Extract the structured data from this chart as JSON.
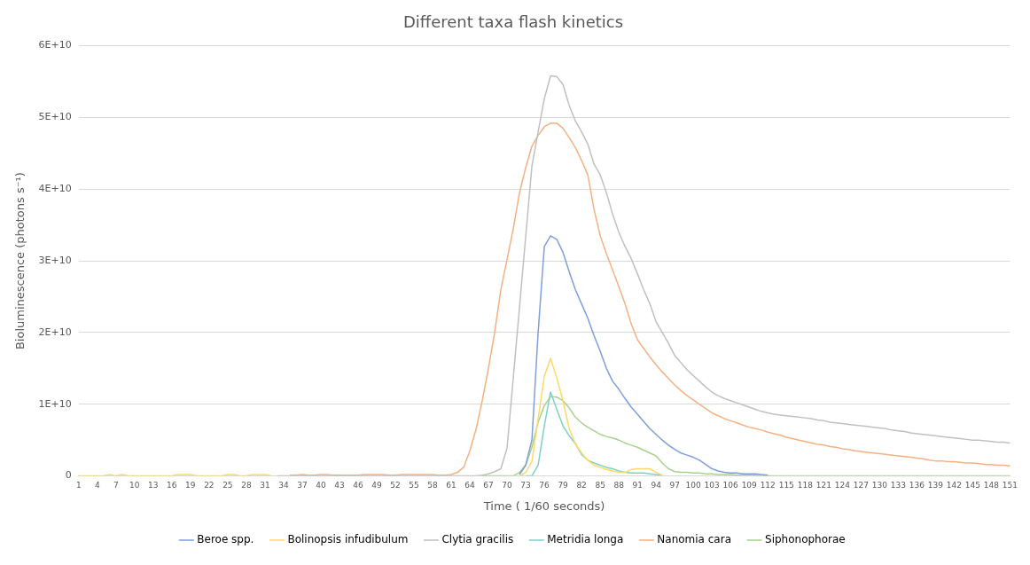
{
  "chart_data": {
    "type": "line",
    "title": "Different taxa flash kinetics",
    "xlabel": "Time ( 1/60 seconds)",
    "ylabel": "Bioluminescence (photons s⁻¹)",
    "categories": [
      "1",
      null,
      null,
      "4",
      null,
      null,
      "7",
      null,
      null,
      "10",
      null,
      null,
      "13",
      null,
      null,
      "16",
      null,
      null,
      "19",
      null,
      null,
      "22",
      null,
      null,
      "25",
      null,
      null,
      "28",
      null,
      null,
      "31",
      null,
      null,
      "34",
      null,
      null,
      "37",
      null,
      null,
      "40",
      null,
      null,
      "43",
      null,
      null,
      "46",
      null,
      null,
      "49",
      null,
      null,
      "52",
      null,
      null,
      "55",
      null,
      null,
      "58",
      null,
      null,
      "61",
      null,
      null,
      "64",
      null,
      null,
      "67",
      null,
      null,
      "70",
      null,
      null,
      "73",
      null,
      null,
      "76",
      null,
      null,
      "79",
      null,
      null,
      "82",
      null,
      null,
      "85",
      null,
      null,
      "88",
      null,
      null,
      "91",
      null,
      null,
      "94",
      null,
      null,
      "97",
      null,
      null,
      "100",
      null,
      null,
      "103",
      null,
      null,
      "106",
      null,
      null,
      "109",
      null,
      null,
      "112",
      null,
      null,
      "115",
      null,
      null,
      "118",
      null,
      null,
      "121",
      null,
      null,
      "124",
      null,
      null,
      "127",
      null,
      null,
      "130",
      null,
      null,
      "133",
      null,
      null,
      "136",
      null,
      null,
      "139",
      null,
      null,
      "142",
      null,
      null,
      "145",
      null,
      null,
      "148",
      null,
      null,
      "151"
    ],
    "ylim": [
      0,
      60000000000.0
    ],
    "yticks": [
      0,
      {
        "value": 10000000000.0,
        "label": "1E+10"
      },
      {
        "value": 20000000000.0,
        "label": "2E+10"
      },
      {
        "value": 30000000000.0,
        "label": "3E+10"
      },
      {
        "value": 40000000000.0,
        "label": "4E+10"
      },
      {
        "value": 50000000000.0,
        "label": "5E+10"
      },
      {
        "value": 60000000000.0,
        "label": "6E+10"
      }
    ],
    "grid": "y",
    "legend": "bottom",
    "marker": "none",
    "line_style": "solid",
    "series": [
      {
        "name": "Beroe spp.",
        "color": "#7f9fdb",
        "values": [
          null,
          null,
          null,
          null,
          null,
          null,
          null,
          null,
          null,
          null,
          null,
          null,
          null,
          null,
          null,
          null,
          null,
          null,
          null,
          null,
          null,
          null,
          null,
          null,
          null,
          null,
          null,
          null,
          null,
          null,
          null,
          null,
          null,
          null,
          null,
          null,
          null,
          null,
          null,
          null,
          null,
          null,
          null,
          null,
          null,
          null,
          null,
          null,
          null,
          null,
          null,
          null,
          null,
          null,
          null,
          null,
          null,
          null,
          null,
          null,
          null,
          null,
          null,
          null,
          null,
          null,
          null,
          null,
          null,
          null,
          null,
          200000000.0,
          1500000000.0,
          5000000000.0,
          20000000000.0,
          32000000000.0,
          33500000000.0,
          33000000000.0,
          31200000000.0,
          28500000000.0,
          26000000000.0,
          24000000000.0,
          22000000000.0,
          19600000000.0,
          17400000000.0,
          15000000000.0,
          13200000000.0,
          12100000000.0,
          10800000000.0,
          9600000000.0,
          8600000000.0,
          7600000000.0,
          6600000000.0,
          5800000000.0,
          5000000000.0,
          4300000000.0,
          3700000000.0,
          3200000000.0,
          2900000000.0,
          2600000000.0,
          2200000000.0,
          1600000000.0,
          1000000000.0,
          700000000.0,
          500000000.0,
          400000000.0,
          400000000.0,
          300000000.0,
          300000000.0,
          300000000.0,
          200000000.0,
          100000000.0,
          null,
          null,
          null,
          null,
          null,
          null,
          null,
          null,
          null,
          null,
          null,
          null,
          null,
          null,
          null,
          null,
          null,
          null,
          null,
          null,
          null,
          null,
          null,
          null,
          null,
          null,
          null,
          null,
          null,
          null,
          null,
          null,
          null,
          null,
          null,
          null,
          null,
          null,
          null
        ]
      },
      {
        "name": "Bolinopsis infudibulum",
        "color": "#ffd966",
        "values": [
          0,
          0,
          0,
          0,
          0,
          200000000.0,
          0,
          200000000.0,
          0,
          0,
          0,
          0,
          0,
          0,
          0,
          0,
          200000000.0,
          200000000.0,
          200000000.0,
          0,
          0,
          0,
          0,
          0,
          200000000.0,
          200000000.0,
          0,
          0,
          200000000.0,
          200000000.0,
          200000000.0,
          0,
          null,
          null,
          null,
          null,
          null,
          null,
          null,
          null,
          null,
          null,
          null,
          null,
          null,
          null,
          null,
          null,
          null,
          null,
          null,
          null,
          null,
          null,
          null,
          null,
          null,
          null,
          null,
          null,
          null,
          null,
          null,
          null,
          null,
          null,
          null,
          null,
          null,
          null,
          null,
          0,
          500000000.0,
          2000000000.0,
          8000000000.0,
          13900000000.0,
          16400000000.0,
          13700000000.0,
          10500000000.0,
          6600000000.0,
          4500000000.0,
          3200000000.0,
          2200000000.0,
          1500000000.0,
          1200000000.0,
          900000000.0,
          700000000.0,
          500000000.0,
          500000000.0,
          900000000.0,
          1000000000.0,
          1000000000.0,
          1000000000.0,
          500000000.0,
          100000000.0,
          null,
          null,
          null,
          null,
          null,
          null,
          null,
          null,
          null,
          null,
          null,
          null,
          null,
          null,
          null,
          null,
          null,
          null,
          null,
          null,
          null,
          null,
          null,
          null,
          null,
          null,
          null,
          null,
          null,
          null,
          null,
          null,
          null,
          null,
          null,
          null,
          null,
          null,
          null,
          null,
          null,
          null,
          null,
          null,
          null,
          null,
          null,
          null,
          null,
          null,
          null,
          null,
          null,
          null,
          null,
          null
        ]
      },
      {
        "name": "Clytia gracilis",
        "color": "#c0c0c0",
        "values": [
          null,
          null,
          null,
          null,
          null,
          null,
          null,
          null,
          null,
          null,
          null,
          null,
          null,
          null,
          null,
          null,
          null,
          null,
          null,
          null,
          null,
          null,
          null,
          null,
          null,
          null,
          null,
          null,
          null,
          null,
          null,
          null,
          0,
          0,
          0,
          0,
          0,
          0,
          0,
          0,
          0,
          0,
          0,
          0,
          0,
          0,
          0,
          0,
          0,
          0,
          0,
          0,
          0,
          0,
          0,
          0,
          0,
          0,
          0,
          0,
          0,
          0,
          0,
          0,
          0,
          100000000.0,
          300000000.0,
          600000000.0,
          1000000000.0,
          3900000000.0,
          13700000000.0,
          23500000000.0,
          33400000000.0,
          43200000000.0,
          48000000000.0,
          52600000000.0,
          55800000000.0,
          55700000000.0,
          54600000000.0,
          51700000000.0,
          49500000000.0,
          48000000000.0,
          46300000000.0,
          43500000000.0,
          42000000000.0,
          39500000000.0,
          36500000000.0,
          34000000000.0,
          32000000000.0,
          30300000000.0,
          28200000000.0,
          26000000000.0,
          24000000000.0,
          21500000000.0,
          20000000000.0,
          18500000000.0,
          16800000000.0,
          15800000000.0,
          14800000000.0,
          14000000000.0,
          13200000000.0,
          12400000000.0,
          11700000000.0,
          11200000000.0,
          10800000000.0,
          10500000000.0,
          10200000000.0,
          9900000000.0,
          9600000000.0,
          9300000000.0,
          9000000000.0,
          8800000000.0,
          8600000000.0,
          8500000000.0,
          8400000000.0,
          8300000000.0,
          8200000000.0,
          8100000000.0,
          8000000000.0,
          7800000000.0,
          7700000000.0,
          7500000000.0,
          7400000000.0,
          7300000000.0,
          7200000000.0,
          7100000000.0,
          7000000000.0,
          6900000000.0,
          6800000000.0,
          6700000000.0,
          6600000000.0,
          6400000000.0,
          6300000000.0,
          6200000000.0,
          6000000000.0,
          5900000000.0,
          5800000000.0,
          5700000000.0,
          5600000000.0,
          5500000000.0,
          5400000000.0,
          5300000000.0,
          5200000000.0,
          5100000000.0,
          5000000000.0,
          5000000000.0,
          4900000000.0,
          4800000000.0,
          4700000000.0,
          4700000000.0,
          4600000000.0
        ]
      },
      {
        "name": "Metridia longa",
        "color": "#80d0c8",
        "values": [
          null,
          null,
          null,
          null,
          null,
          null,
          null,
          null,
          null,
          null,
          null,
          null,
          null,
          null,
          null,
          null,
          null,
          null,
          null,
          null,
          null,
          null,
          null,
          null,
          null,
          null,
          null,
          null,
          null,
          null,
          null,
          null,
          null,
          null,
          null,
          null,
          null,
          null,
          null,
          null,
          null,
          null,
          null,
          null,
          null,
          null,
          null,
          null,
          null,
          null,
          null,
          null,
          null,
          null,
          null,
          null,
          null,
          null,
          null,
          null,
          null,
          null,
          null,
          null,
          null,
          null,
          null,
          null,
          null,
          null,
          null,
          null,
          0,
          0,
          1500000000.0,
          7000000000.0,
          11700000000.0,
          9300000000.0,
          7000000000.0,
          5600000000.0,
          4500000000.0,
          3000000000.0,
          2200000000.0,
          1800000000.0,
          1500000000.0,
          1200000000.0,
          1000000000.0,
          700000000.0,
          500000000.0,
          400000000.0,
          400000000.0,
          400000000.0,
          300000000.0,
          200000000.0,
          100000000.0,
          null,
          null,
          null,
          null,
          null,
          null,
          null,
          null,
          null,
          null,
          null,
          null,
          null,
          null,
          null,
          null,
          null,
          null,
          null,
          null,
          null,
          null,
          null,
          null,
          null,
          null,
          null,
          null,
          null,
          null,
          null,
          null,
          null,
          null,
          null,
          null,
          null,
          null,
          null,
          null,
          null,
          null,
          null,
          null,
          null,
          null,
          null,
          null,
          null,
          null,
          null,
          null,
          null,
          null,
          null,
          null
        ]
      },
      {
        "name": "Nanomia cara",
        "color": "#f4b183",
        "values": [
          null,
          null,
          null,
          null,
          null,
          null,
          null,
          null,
          null,
          null,
          null,
          null,
          null,
          null,
          null,
          null,
          null,
          null,
          null,
          null,
          null,
          null,
          null,
          null,
          null,
          null,
          null,
          null,
          null,
          null,
          null,
          null,
          null,
          null,
          100000000.0,
          100000000.0,
          200000000.0,
          100000000.0,
          100000000.0,
          200000000.0,
          200000000.0,
          100000000.0,
          100000000.0,
          100000000.0,
          100000000.0,
          100000000.0,
          200000000.0,
          200000000.0,
          200000000.0,
          200000000.0,
          100000000.0,
          100000000.0,
          200000000.0,
          200000000.0,
          200000000.0,
          200000000.0,
          200000000.0,
          200000000.0,
          100000000.0,
          100000000.0,
          200000000.0,
          500000000.0,
          1200000000.0,
          3500000000.0,
          6500000000.0,
          10500000000.0,
          15000000000.0,
          20000000000.0,
          26000000000.0,
          30200000000.0,
          34500000000.0,
          39500000000.0,
          43000000000.0,
          46000000000.0,
          47500000000.0,
          48700000000.0,
          49200000000.0,
          49200000000.0,
          48500000000.0,
          47200000000.0,
          45800000000.0,
          44000000000.0,
          42000000000.0,
          37200000000.0,
          33500000000.0,
          31000000000.0,
          28700000000.0,
          26400000000.0,
          24000000000.0,
          21200000000.0,
          19000000000.0,
          17800000000.0,
          16600000000.0,
          15500000000.0,
          14500000000.0,
          13600000000.0,
          12700000000.0,
          11900000000.0,
          11200000000.0,
          10600000000.0,
          10000000000.0,
          9400000000.0,
          8800000000.0,
          8400000000.0,
          8000000000.0,
          7700000000.0,
          7400000000.0,
          7100000000.0,
          6800000000.0,
          6600000000.0,
          6400000000.0,
          6100000000.0,
          5900000000.0,
          5700000000.0,
          5400000000.0,
          5200000000.0,
          5000000000.0,
          4800000000.0,
          4600000000.0,
          4400000000.0,
          4300000000.0,
          4100000000.0,
          4000000000.0,
          3800000000.0,
          3700000000.0,
          3500000000.0,
          3400000000.0,
          3300000000.0,
          3200000000.0,
          3100000000.0,
          3000000000.0,
          2900000000.0,
          2800000000.0,
          2700000000.0,
          2600000000.0,
          2500000000.0,
          2400000000.0,
          2200000000.0,
          2100000000.0,
          2100000000.0,
          2000000000.0,
          2000000000.0,
          1900000000.0,
          1800000000.0,
          1800000000.0,
          1700000000.0,
          1600000000.0,
          1600000000.0,
          1500000000.0,
          1500000000.0,
          1400000000.0
        ]
      },
      {
        "name": "Siphonophorae",
        "color": "#a9d18e",
        "values": [
          null,
          null,
          null,
          null,
          null,
          null,
          null,
          null,
          null,
          null,
          null,
          null,
          null,
          null,
          null,
          null,
          null,
          null,
          null,
          null,
          null,
          null,
          null,
          null,
          null,
          null,
          null,
          null,
          null,
          null,
          null,
          null,
          null,
          null,
          null,
          null,
          null,
          null,
          null,
          null,
          null,
          null,
          null,
          null,
          null,
          null,
          null,
          null,
          null,
          null,
          null,
          null,
          null,
          null,
          null,
          null,
          null,
          null,
          null,
          null,
          null,
          null,
          null,
          null,
          null,
          0,
          0,
          0,
          0,
          0,
          0,
          500000000.0,
          1500000000.0,
          4000000000.0,
          7500000000.0,
          9800000000.0,
          11100000000.0,
          11000000000.0,
          10500000000.0,
          9500000000.0,
          8200000000.0,
          7400000000.0,
          6800000000.0,
          6300000000.0,
          5800000000.0,
          5500000000.0,
          5300000000.0,
          5000000000.0,
          4600000000.0,
          4300000000.0,
          4000000000.0,
          3600000000.0,
          3200000000.0,
          2800000000.0,
          1800000000.0,
          1000000000.0,
          600000000.0,
          500000000.0,
          500000000.0,
          400000000.0,
          400000000.0,
          300000000.0,
          300000000.0,
          200000000.0,
          200000000.0,
          200000000.0,
          100000000.0,
          100000000.0,
          100000000.0,
          100000000.0,
          0,
          0,
          0,
          0,
          0,
          0,
          0,
          0,
          0,
          0,
          0,
          0,
          0,
          0,
          0,
          0,
          0,
          0,
          0,
          0,
          0,
          0,
          0,
          0,
          0,
          0,
          0,
          0,
          0,
          0,
          0,
          0,
          0,
          0,
          0,
          0,
          0,
          0,
          0,
          0,
          0
        ]
      }
    ]
  }
}
